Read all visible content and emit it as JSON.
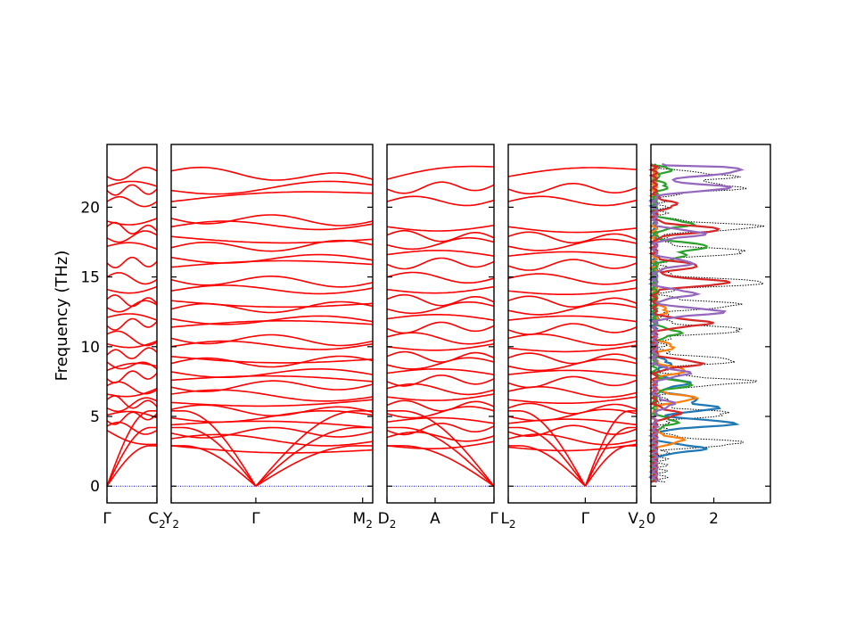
{
  "chart_data": {
    "type": "line",
    "ylabel": "Frequency (THz)",
    "ylim": [
      -1.2,
      24.5
    ],
    "yticks": [
      0,
      5,
      10,
      15,
      20
    ],
    "band_color": "#ff0000",
    "zero_line_color": "#0000cc",
    "dos_total_color": "#000000",
    "panels": [
      {
        "x": [
          0,
          1
        ],
        "labels": [
          {
            "x": 0,
            "text": "Γ"
          },
          {
            "x": 1,
            "text": "C",
            "sub": "2"
          }
        ],
        "gamma": [
          0
        ],
        "bands": [
          {
            "a": 4.0,
            "b": 3.0
          },
          {
            "a": 4.3,
            "b": 4.0
          },
          {
            "a": 4.7,
            "b": 5.2
          },
          {
            "a": 5.1,
            "b": 4.9
          },
          {
            "a": 5.6,
            "b": 6.1
          },
          {
            "a": 6.2,
            "b": 5.7
          },
          {
            "a": 6.6,
            "b": 7.0
          },
          {
            "a": 7.2,
            "b": 6.9
          },
          {
            "a": 7.7,
            "b": 8.1
          },
          {
            "a": 8.3,
            "b": 8.6
          },
          {
            "a": 8.9,
            "b": 8.4
          },
          {
            "a": 9.4,
            "b": 9.6
          },
          {
            "a": 10.2,
            "b": 10.4
          },
          {
            "a": 10.9,
            "b": 10.3
          },
          {
            "a": 11.5,
            "b": 11.8
          },
          {
            "a": 12.1,
            "b": 11.9
          },
          {
            "a": 12.8,
            "b": 13.0
          },
          {
            "a": 13.4,
            "b": 13.1
          },
          {
            "a": 14.1,
            "b": 14.3
          },
          {
            "a": 15.0,
            "b": 14.8
          },
          {
            "a": 16.0,
            "b": 16.1
          },
          {
            "a": 17.2,
            "b": 17.0
          },
          {
            "a": 17.8,
            "b": 18.0
          },
          {
            "a": 18.6,
            "b": 18.3
          },
          {
            "a": 19.0,
            "b": 19.2
          },
          {
            "a": 20.4,
            "b": 20.4
          },
          {
            "a": 21.2,
            "b": 21.3
          },
          {
            "a": 21.5,
            "b": 21.5
          },
          {
            "a": 22.2,
            "b": 22.6
          }
        ]
      },
      {
        "x": [
          0,
          1
        ],
        "labels": [
          {
            "x": 0,
            "text": "Y",
            "sub": "2"
          },
          {
            "x": 0.42,
            "text": "Γ"
          },
          {
            "x": 0.95,
            "text": "M",
            "sub": "2"
          }
        ],
        "gamma": [
          0.42
        ],
        "bands": [
          {
            "a": 2.9,
            "b": 2.6
          },
          {
            "a": 3.4,
            "b": 3.2
          },
          {
            "a": 3.8,
            "b": 3.9
          },
          {
            "a": 4.4,
            "b": 4.2
          },
          {
            "a": 4.9,
            "b": 5.1
          },
          {
            "a": 5.5,
            "b": 5.3
          },
          {
            "a": 6.0,
            "b": 6.2
          },
          {
            "a": 6.6,
            "b": 6.4
          },
          {
            "a": 7.1,
            "b": 7.3
          },
          {
            "a": 7.6,
            "b": 7.5
          },
          {
            "a": 8.2,
            "b": 8.0
          },
          {
            "a": 8.8,
            "b": 9.0
          },
          {
            "a": 9.3,
            "b": 9.1
          },
          {
            "a": 10.0,
            "b": 10.2
          },
          {
            "a": 10.6,
            "b": 10.4
          },
          {
            "a": 11.4,
            "b": 11.6
          },
          {
            "a": 12.0,
            "b": 11.8
          },
          {
            "a": 12.7,
            "b": 12.9
          },
          {
            "a": 13.3,
            "b": 13.1
          },
          {
            "a": 14.0,
            "b": 14.2
          },
          {
            "a": 14.8,
            "b": 14.6
          },
          {
            "a": 15.7,
            "b": 15.9
          },
          {
            "a": 16.4,
            "b": 16.2
          },
          {
            "a": 17.1,
            "b": 17.3
          },
          {
            "a": 17.9,
            "b": 17.7
          },
          {
            "a": 18.6,
            "b": 18.8
          },
          {
            "a": 19.2,
            "b": 19.0
          },
          {
            "a": 20.4,
            "b": 21.0
          },
          {
            "a": 21.2,
            "b": 21.6
          },
          {
            "a": 22.6,
            "b": 22.0
          }
        ]
      },
      {
        "x": [
          0,
          1
        ],
        "labels": [
          {
            "x": 0,
            "text": "D",
            "sub": "2"
          },
          {
            "x": 0.45,
            "text": "A"
          },
          {
            "x": 1,
            "text": "Γ"
          }
        ],
        "gamma": [
          1
        ],
        "bands": [
          {
            "a": 2.9,
            "b": 3.2
          },
          {
            "a": 3.5,
            "b": 3.6
          },
          {
            "a": 4.0,
            "b": 4.3
          },
          {
            "a": 4.6,
            "b": 4.5
          },
          {
            "a": 5.2,
            "b": 5.4
          },
          {
            "a": 5.8,
            "b": 5.7
          },
          {
            "a": 6.4,
            "b": 6.6
          },
          {
            "a": 7.0,
            "b": 6.9
          },
          {
            "a": 7.5,
            "b": 7.7
          },
          {
            "a": 8.1,
            "b": 8.0
          },
          {
            "a": 8.7,
            "b": 8.9
          },
          {
            "a": 9.3,
            "b": 9.2
          },
          {
            "a": 10.0,
            "b": 10.2
          },
          {
            "a": 10.7,
            "b": 10.5
          },
          {
            "a": 11.3,
            "b": 11.5
          },
          {
            "a": 12.0,
            "b": 11.9
          },
          {
            "a": 12.7,
            "b": 12.9
          },
          {
            "a": 13.4,
            "b": 13.2
          },
          {
            "a": 14.1,
            "b": 14.3
          },
          {
            "a": 15.0,
            "b": 14.9
          },
          {
            "a": 15.9,
            "b": 16.1
          },
          {
            "a": 16.6,
            "b": 16.5
          },
          {
            "a": 17.3,
            "b": 17.5
          },
          {
            "a": 18.0,
            "b": 17.8
          },
          {
            "a": 18.6,
            "b": 18.7
          },
          {
            "a": 20.4,
            "b": 20.5
          },
          {
            "a": 21.3,
            "b": 21.6
          },
          {
            "a": 22.0,
            "b": 22.9
          }
        ]
      },
      {
        "x": [
          0,
          1
        ],
        "labels": [
          {
            "x": 0,
            "text": "L",
            "sub": "2"
          },
          {
            "x": 0.6,
            "text": "Γ"
          },
          {
            "x": 1,
            "text": "V",
            "sub": "2"
          }
        ],
        "gamma": [
          0.6
        ],
        "bands": [
          {
            "a": 2.8,
            "b": 3.0
          },
          {
            "a": 3.4,
            "b": 3.3
          },
          {
            "a": 3.9,
            "b": 4.1
          },
          {
            "a": 4.5,
            "b": 4.4
          },
          {
            "a": 5.0,
            "b": 5.2
          },
          {
            "a": 5.6,
            "b": 5.5
          },
          {
            "a": 6.2,
            "b": 6.4
          },
          {
            "a": 6.8,
            "b": 6.7
          },
          {
            "a": 7.4,
            "b": 7.6
          },
          {
            "a": 8.0,
            "b": 7.9
          },
          {
            "a": 8.6,
            "b": 8.8
          },
          {
            "a": 9.2,
            "b": 9.1
          },
          {
            "a": 9.9,
            "b": 10.1
          },
          {
            "a": 10.6,
            "b": 10.4
          },
          {
            "a": 11.2,
            "b": 11.4
          },
          {
            "a": 11.9,
            "b": 11.8
          },
          {
            "a": 12.6,
            "b": 12.8
          },
          {
            "a": 13.3,
            "b": 13.1
          },
          {
            "a": 14.0,
            "b": 14.2
          },
          {
            "a": 14.9,
            "b": 14.8
          },
          {
            "a": 15.8,
            "b": 16.0
          },
          {
            "a": 16.5,
            "b": 16.4
          },
          {
            "a": 17.2,
            "b": 17.4
          },
          {
            "a": 17.9,
            "b": 17.7
          },
          {
            "a": 18.6,
            "b": 18.5
          },
          {
            "a": 20.4,
            "b": 20.5
          },
          {
            "a": 21.3,
            "b": 21.4
          },
          {
            "a": 22.2,
            "b": 22.7
          }
        ]
      }
    ],
    "dos": {
      "xlim": [
        0,
        3.8
      ],
      "xticks": [
        0,
        2
      ],
      "series": [
        {
          "color": "#000000",
          "dashed": true,
          "width": 1.0,
          "peaks": [
            [
              2.6,
              3.1
            ],
            [
              2.2,
              5.2
            ],
            [
              2.9,
              7.5
            ],
            [
              2.4,
              9.0
            ],
            [
              2.7,
              11.2
            ],
            [
              2.5,
              13.0
            ],
            [
              3.4,
              14.6
            ],
            [
              2.8,
              16.8
            ],
            [
              3.2,
              18.6
            ],
            [
              2.6,
              21.4
            ],
            [
              2.3,
              22.2
            ]
          ]
        },
        {
          "color": "#1f77b4",
          "dashed": false,
          "width": 2.2,
          "peaks": [
            [
              1.6,
              2.7
            ],
            [
              2.6,
              4.5
            ],
            [
              2.0,
              5.6
            ],
            [
              1.3,
              6.3
            ],
            [
              1.1,
              7.4
            ],
            [
              0.5,
              8.8
            ]
          ]
        },
        {
          "color": "#ff7f0e",
          "dashed": false,
          "width": 2.2,
          "peaks": [
            [
              0.9,
              3.3
            ],
            [
              1.3,
              6.3
            ],
            [
              1.0,
              8.3
            ],
            [
              0.6,
              10.0
            ],
            [
              0.4,
              12.6
            ]
          ]
        },
        {
          "color": "#2ca02c",
          "dashed": false,
          "width": 2.2,
          "peaks": [
            [
              0.7,
              4.6
            ],
            [
              1.2,
              7.3
            ],
            [
              0.8,
              11.0
            ],
            [
              0.9,
              16.5
            ],
            [
              1.7,
              17.2
            ],
            [
              1.2,
              18.8
            ],
            [
              0.4,
              21.5
            ],
            [
              0.5,
              22.7
            ]
          ]
        },
        {
          "color": "#d62728",
          "dashed": false,
          "width": 2.2,
          "peaks": [
            [
              0.8,
              5.2
            ],
            [
              1.5,
              8.8
            ],
            [
              1.8,
              11.7
            ],
            [
              2.4,
              14.6
            ],
            [
              1.4,
              15.8
            ],
            [
              2.1,
              18.4
            ],
            [
              0.7,
              20.2
            ]
          ]
        },
        {
          "color": "#9467bd",
          "dashed": false,
          "width": 2.2,
          "peaks": [
            [
              0.6,
              5.9
            ],
            [
              1.1,
              8.1
            ],
            [
              2.2,
              12.5
            ],
            [
              1.3,
              13.8
            ],
            [
              1.2,
              16.0
            ],
            [
              1.6,
              18.1
            ],
            [
              2.4,
              21.4
            ],
            [
              1.6,
              22.4
            ],
            [
              2.1,
              22.8
            ]
          ]
        }
      ]
    }
  }
}
